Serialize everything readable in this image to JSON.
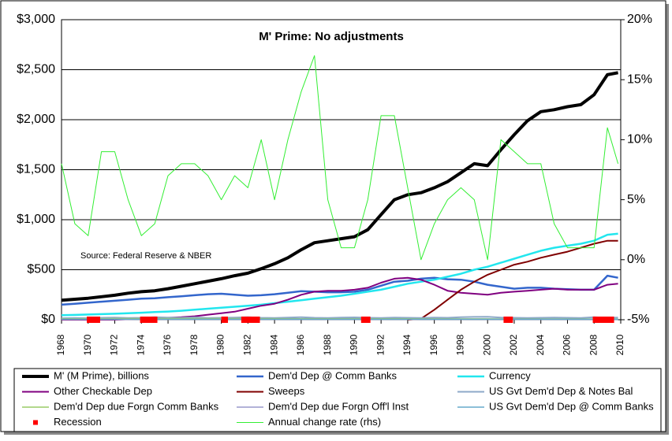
{
  "chart_data": {
    "type": "line",
    "title": "M' Prime:  No adjustments",
    "annotation": "Source: Federal Reserve & NBER",
    "x": [
      1968,
      1969,
      1970,
      1971,
      1972,
      1973,
      1974,
      1975,
      1976,
      1977,
      1978,
      1979,
      1980,
      1981,
      1982,
      1983,
      1984,
      1985,
      1986,
      1987,
      1988,
      1989,
      1990,
      1991,
      1992,
      1993,
      1994,
      1995,
      1996,
      1997,
      1998,
      1999,
      2000,
      2001,
      2002,
      2003,
      2004,
      2005,
      2006,
      2007,
      2008,
      2009,
      2009.8
    ],
    "xlim": [
      1968,
      2010
    ],
    "xticks": [
      1968,
      1970,
      1972,
      1974,
      1976,
      1978,
      1980,
      1982,
      1984,
      1986,
      1988,
      1990,
      1992,
      1994,
      1996,
      1998,
      2000,
      2002,
      2004,
      2006,
      2008,
      2010
    ],
    "ylim": [
      0,
      3000
    ],
    "yticks": [
      {
        "value": 0,
        "label": "$0"
      },
      {
        "value": 500,
        "label": "$500"
      },
      {
        "value": 1000,
        "label": "$1,000"
      },
      {
        "value": 1500,
        "label": "$1,500"
      },
      {
        "value": 2000,
        "label": "$2,000"
      },
      {
        "value": 2500,
        "label": "$2,500"
      },
      {
        "value": 3000,
        "label": "$3,000"
      }
    ],
    "y2lim": [
      -5,
      20
    ],
    "y2ticks": [
      {
        "value": -5,
        "label": "-5%"
      },
      {
        "value": 0,
        "label": "0%"
      },
      {
        "value": 5,
        "label": "5%"
      },
      {
        "value": 10,
        "label": "10%"
      },
      {
        "value": 15,
        "label": "15%"
      },
      {
        "value": 20,
        "label": "20%"
      }
    ],
    "grid": true,
    "series": [
      {
        "name": "M' (M Prime), billions",
        "color": "#000000",
        "values": [
          195,
          205,
          215,
          230,
          245,
          265,
          280,
          290,
          310,
          335,
          360,
          385,
          410,
          440,
          465,
          510,
          560,
          620,
          700,
          770,
          790,
          810,
          830,
          900,
          1050,
          1200,
          1250,
          1270,
          1320,
          1380,
          1470,
          1560,
          1540,
          1700,
          1850,
          1990,
          2080,
          2100,
          2130,
          2150,
          2250,
          2450,
          2470
        ]
      },
      {
        "name": "Dem'd Dep @ Comm Banks",
        "color": "#3366cc",
        "values": [
          150,
          160,
          170,
          180,
          190,
          200,
          210,
          215,
          225,
          235,
          245,
          255,
          260,
          250,
          240,
          245,
          255,
          270,
          285,
          280,
          275,
          275,
          280,
          300,
          340,
          380,
          390,
          410,
          420,
          405,
          400,
          380,
          350,
          330,
          310,
          320,
          320,
          310,
          305,
          300,
          300,
          440,
          420
        ]
      },
      {
        "name": "Currency",
        "color": "#22e6ee",
        "values": [
          45,
          48,
          52,
          56,
          60,
          65,
          70,
          76,
          82,
          90,
          100,
          110,
          120,
          130,
          140,
          150,
          165,
          180,
          195,
          210,
          225,
          240,
          260,
          280,
          300,
          330,
          360,
          380,
          400,
          430,
          460,
          500,
          530,
          570,
          610,
          650,
          690,
          720,
          740,
          760,
          790,
          850,
          860
        ]
      },
      {
        "name": "Other Checkable Dep",
        "color": "#800080",
        "values": [
          0,
          0,
          0,
          0,
          0,
          5,
          10,
          15,
          20,
          25,
          35,
          50,
          65,
          80,
          110,
          140,
          160,
          200,
          250,
          280,
          290,
          290,
          300,
          320,
          370,
          410,
          420,
          400,
          350,
          290,
          270,
          260,
          250,
          270,
          280,
          290,
          300,
          310,
          300,
          300,
          300,
          350,
          360
        ]
      },
      {
        "name": "Sweeps",
        "color": "#800000",
        "values": [
          null,
          null,
          null,
          null,
          null,
          null,
          null,
          null,
          null,
          null,
          null,
          null,
          null,
          null,
          null,
          null,
          null,
          null,
          null,
          null,
          null,
          null,
          null,
          null,
          null,
          null,
          0,
          10,
          100,
          200,
          300,
          380,
          450,
          500,
          550,
          580,
          620,
          650,
          680,
          720,
          760,
          790,
          790
        ]
      },
      {
        "name": "US Gvt Dem'd Dep & Notes Bal",
        "color": "#8ea9c8",
        "values": [
          15,
          18,
          16,
          20,
          22,
          18,
          20,
          25,
          22,
          20,
          24,
          18,
          20,
          22,
          25,
          20,
          18,
          22,
          25,
          20,
          18,
          22,
          24,
          20,
          18,
          22,
          20,
          18,
          22,
          20,
          25,
          28,
          30,
          22,
          20,
          18,
          20,
          22,
          20,
          18,
          25,
          20,
          22
        ]
      },
      {
        "name": "Dem'd Dep due Forgn Comm Banks",
        "color": "#99cc66",
        "values": [
          10,
          10,
          11,
          11,
          12,
          12,
          12,
          12,
          12,
          12,
          12,
          12,
          12,
          12,
          12,
          11,
          11,
          10,
          10,
          10,
          10,
          10,
          10,
          10,
          10,
          10,
          10,
          9,
          9,
          9,
          9,
          9,
          9,
          8,
          8,
          8,
          8,
          8,
          8,
          8,
          8,
          8,
          8
        ]
      },
      {
        "name": "Dem'd Dep due Forgn Off'l Inst",
        "color": "#9999cc",
        "values": [
          3,
          3,
          3,
          3,
          3,
          3,
          3,
          3,
          3,
          3,
          3,
          3,
          3,
          3,
          3,
          3,
          3,
          3,
          3,
          3,
          3,
          3,
          3,
          3,
          3,
          3,
          3,
          3,
          3,
          3,
          3,
          3,
          3,
          3,
          3,
          3,
          3,
          3,
          3,
          3,
          3,
          3,
          3
        ]
      },
      {
        "name": "US Gvt Dem'd Dep @ Comm Banks",
        "color": "#66aacc",
        "values": [
          5,
          5,
          5,
          5,
          5,
          5,
          5,
          5,
          5,
          5,
          5,
          5,
          5,
          5,
          5,
          5,
          5,
          5,
          5,
          5,
          5,
          5,
          5,
          5,
          5,
          5,
          5,
          5,
          5,
          5,
          5,
          5,
          5,
          5,
          5,
          5,
          5,
          5,
          5,
          5,
          5,
          5,
          5
        ]
      },
      {
        "name": "Annual change rate (rhs)",
        "color": "#33ee33",
        "axis": "y2",
        "values": [
          8,
          3,
          2,
          9,
          9,
          5,
          2,
          3,
          7,
          8,
          8,
          7,
          5,
          7,
          6,
          10,
          5,
          10,
          14,
          17,
          5,
          1,
          1,
          5,
          12,
          12,
          6,
          0,
          3,
          5,
          6,
          5,
          0,
          10,
          9,
          8,
          8,
          3,
          1,
          1,
          1,
          11,
          8
        ]
      }
    ],
    "recession": {
      "name": "Recession",
      "color": "#ff0000",
      "spans": [
        [
          1969.9,
          1970.9
        ],
        [
          1973.9,
          1975.2
        ],
        [
          1980.0,
          1980.5
        ],
        [
          1981.5,
          1982.9
        ],
        [
          1990.5,
          1991.2
        ],
        [
          2001.2,
          2001.9
        ],
        [
          2007.9,
          2009.5
        ]
      ]
    }
  }
}
